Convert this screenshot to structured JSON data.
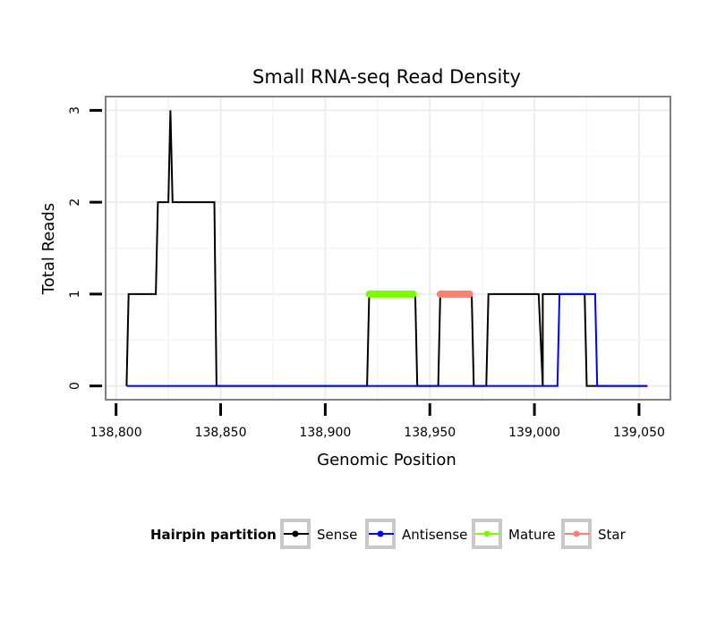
{
  "chart_data": {
    "type": "line",
    "title": "Small RNA-seq Read Density",
    "xlabel": "Genomic Position",
    "ylabel": "Total Reads",
    "xlim": [
      138795,
      139065
    ],
    "ylim": [
      -0.15,
      3.15
    ],
    "x_ticks": [
      138800,
      138850,
      138900,
      138950,
      139000,
      139050
    ],
    "x_tick_labels": [
      "138,800",
      "138,850",
      "138,900",
      "138,950",
      "139,000",
      "139,050"
    ],
    "y_ticks": [
      0,
      1,
      2,
      3
    ],
    "y_tick_labels": [
      "0",
      "1",
      "2",
      "3"
    ],
    "grid": true,
    "legend": {
      "title": "Hairpin partition",
      "position": "bottom",
      "entries": [
        "Sense",
        "Antisense",
        "Mature",
        "Star"
      ]
    },
    "series": [
      {
        "name": "Sense",
        "color": "#000000",
        "points": [
          [
            138805,
            0
          ],
          [
            138806,
            1
          ],
          [
            138819,
            1
          ],
          [
            138820,
            2
          ],
          [
            138825,
            2
          ],
          [
            138826,
            3
          ],
          [
            138827,
            2
          ],
          [
            138847,
            2
          ],
          [
            138848,
            0
          ],
          [
            138920,
            0
          ],
          [
            138921,
            1
          ],
          [
            138943,
            1
          ],
          [
            138944,
            0
          ],
          [
            138954,
            0
          ],
          [
            138955,
            1
          ],
          [
            138970,
            1
          ],
          [
            138971,
            0
          ],
          [
            138977,
            0
          ],
          [
            138978,
            1
          ],
          [
            139002,
            1
          ],
          [
            139004,
            0
          ],
          [
            139004,
            1
          ],
          [
            139024,
            1
          ],
          [
            139025,
            0
          ],
          [
            139054,
            0
          ]
        ]
      },
      {
        "name": "Antisense",
        "color": "#0000ff",
        "points": [
          [
            138805,
            0
          ],
          [
            139011,
            0
          ],
          [
            139012,
            1
          ],
          [
            139029,
            1
          ],
          [
            139030,
            0
          ],
          [
            139054,
            0
          ]
        ]
      },
      {
        "name": "Mature",
        "color": "#7cfc00",
        "points": [
          [
            138921,
            1
          ],
          [
            138942,
            1
          ]
        ]
      },
      {
        "name": "Star",
        "color": "#fa8072",
        "points": [
          [
            138955,
            1
          ],
          [
            138969,
            1
          ]
        ]
      }
    ]
  }
}
